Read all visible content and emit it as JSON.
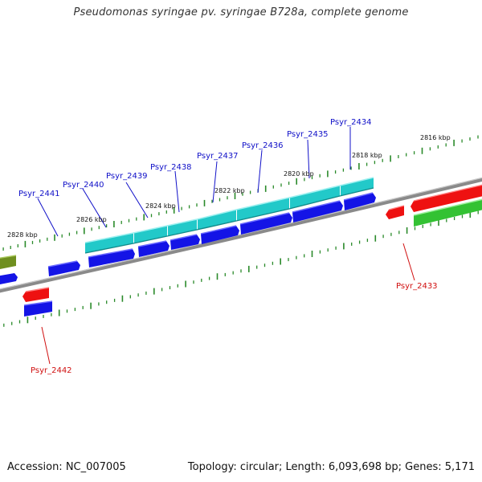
{
  "title": "Pseudomonas syringae pv. syringae B728a, complete genome",
  "footer": {
    "accession": "Accession: NC_007005",
    "summary": "Topology: circular; Length: 6,093,698 bp; Genes: 5,171"
  },
  "colors": {
    "backbone": "#8a8a8a",
    "tick": "#2a8a2a",
    "gene_blue": "#1414e6",
    "gene_cyan": "#22c9c9",
    "gene_red": "#ee1111",
    "gene_green": "#33c233",
    "gene_olive": "#6f8f1f",
    "label_blue": "#1010c8",
    "label_red": "#d01010"
  },
  "scale_labels": [
    "2816 kbp",
    "2818 kbp",
    "2820 kbp",
    "2822 kbp",
    "2824 kbp",
    "2826 kbp",
    "2828 kbp"
  ],
  "gene_labels": [
    "Psyr_2434",
    "Psyr_2435",
    "Psyr_2436",
    "Psyr_2437",
    "Psyr_2438",
    "Psyr_2439",
    "Psyr_2440",
    "Psyr_2441",
    "Psyr_2433",
    "Psyr_2442"
  ]
}
